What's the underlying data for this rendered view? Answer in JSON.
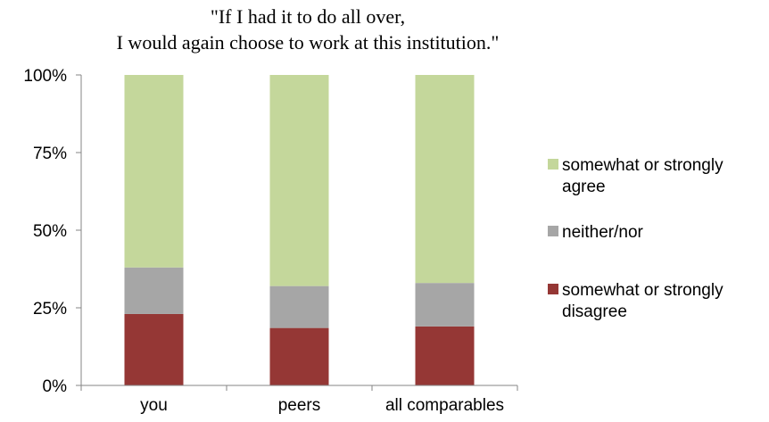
{
  "chart_data": {
    "type": "bar",
    "stacked": true,
    "title_lines": [
      "\"If I had it to do all over,",
      "I would again choose to work at this institution.\""
    ],
    "categories": [
      "you",
      "peers",
      "all comparables"
    ],
    "ylim": [
      0,
      100
    ],
    "y_ticks": [
      "0%",
      "25%",
      "50%",
      "75%",
      "100%"
    ],
    "y_tick_values": [
      0,
      25,
      50,
      75,
      100
    ],
    "grid": false,
    "legend_position": "right",
    "series": [
      {
        "name": "somewhat or strongly disagree",
        "name_lines": [
          "somewhat or strongly",
          "disagree"
        ],
        "color": "#953735",
        "values": [
          23,
          18.5,
          19
        ]
      },
      {
        "name": "neither/nor",
        "name_lines": [
          "neither/nor"
        ],
        "color": "#a6a6a6",
        "values": [
          15,
          13.5,
          14
        ]
      },
      {
        "name": "somewhat or strongly agree",
        "name_lines": [
          "somewhat or strongly",
          "agree"
        ],
        "color": "#c4d79b",
        "values": [
          62,
          68,
          67
        ]
      }
    ]
  }
}
